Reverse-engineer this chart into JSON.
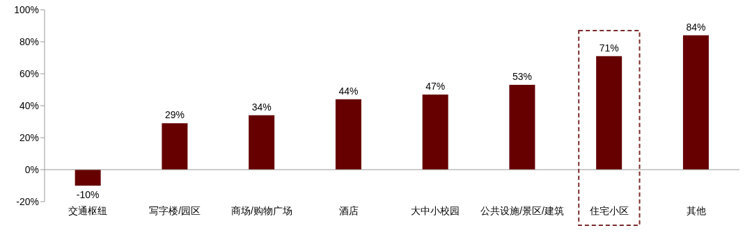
{
  "chart_data": {
    "type": "bar",
    "categories": [
      "交通枢纽",
      "写字楼/园区",
      "商场/购物广场",
      "酒店",
      "大中小校园",
      "公共设施/景区/建筑",
      "住宅小区",
      "其他"
    ],
    "values": [
      -10,
      29,
      34,
      44,
      47,
      53,
      71,
      84
    ],
    "color": "#660000",
    "value_labels": [
      "-10%",
      "29%",
      "34%",
      "44%",
      "47%",
      "53%",
      "71%",
      "84%"
    ],
    "ylim": [
      -20,
      100
    ],
    "yticks": [
      {
        "value": -20,
        "label": "-20%"
      },
      {
        "value": 0,
        "label": "0%"
      },
      {
        "value": 20,
        "label": "20%"
      },
      {
        "value": 40,
        "label": "40%"
      },
      {
        "value": 60,
        "label": "60%"
      },
      {
        "value": 80,
        "label": "80%"
      },
      {
        "value": 100,
        "label": "100%"
      }
    ],
    "ref_lines": [
      {
        "axis": "y",
        "value": 0,
        "color": "#999999"
      }
    ],
    "grid": false,
    "legend": false
  }
}
